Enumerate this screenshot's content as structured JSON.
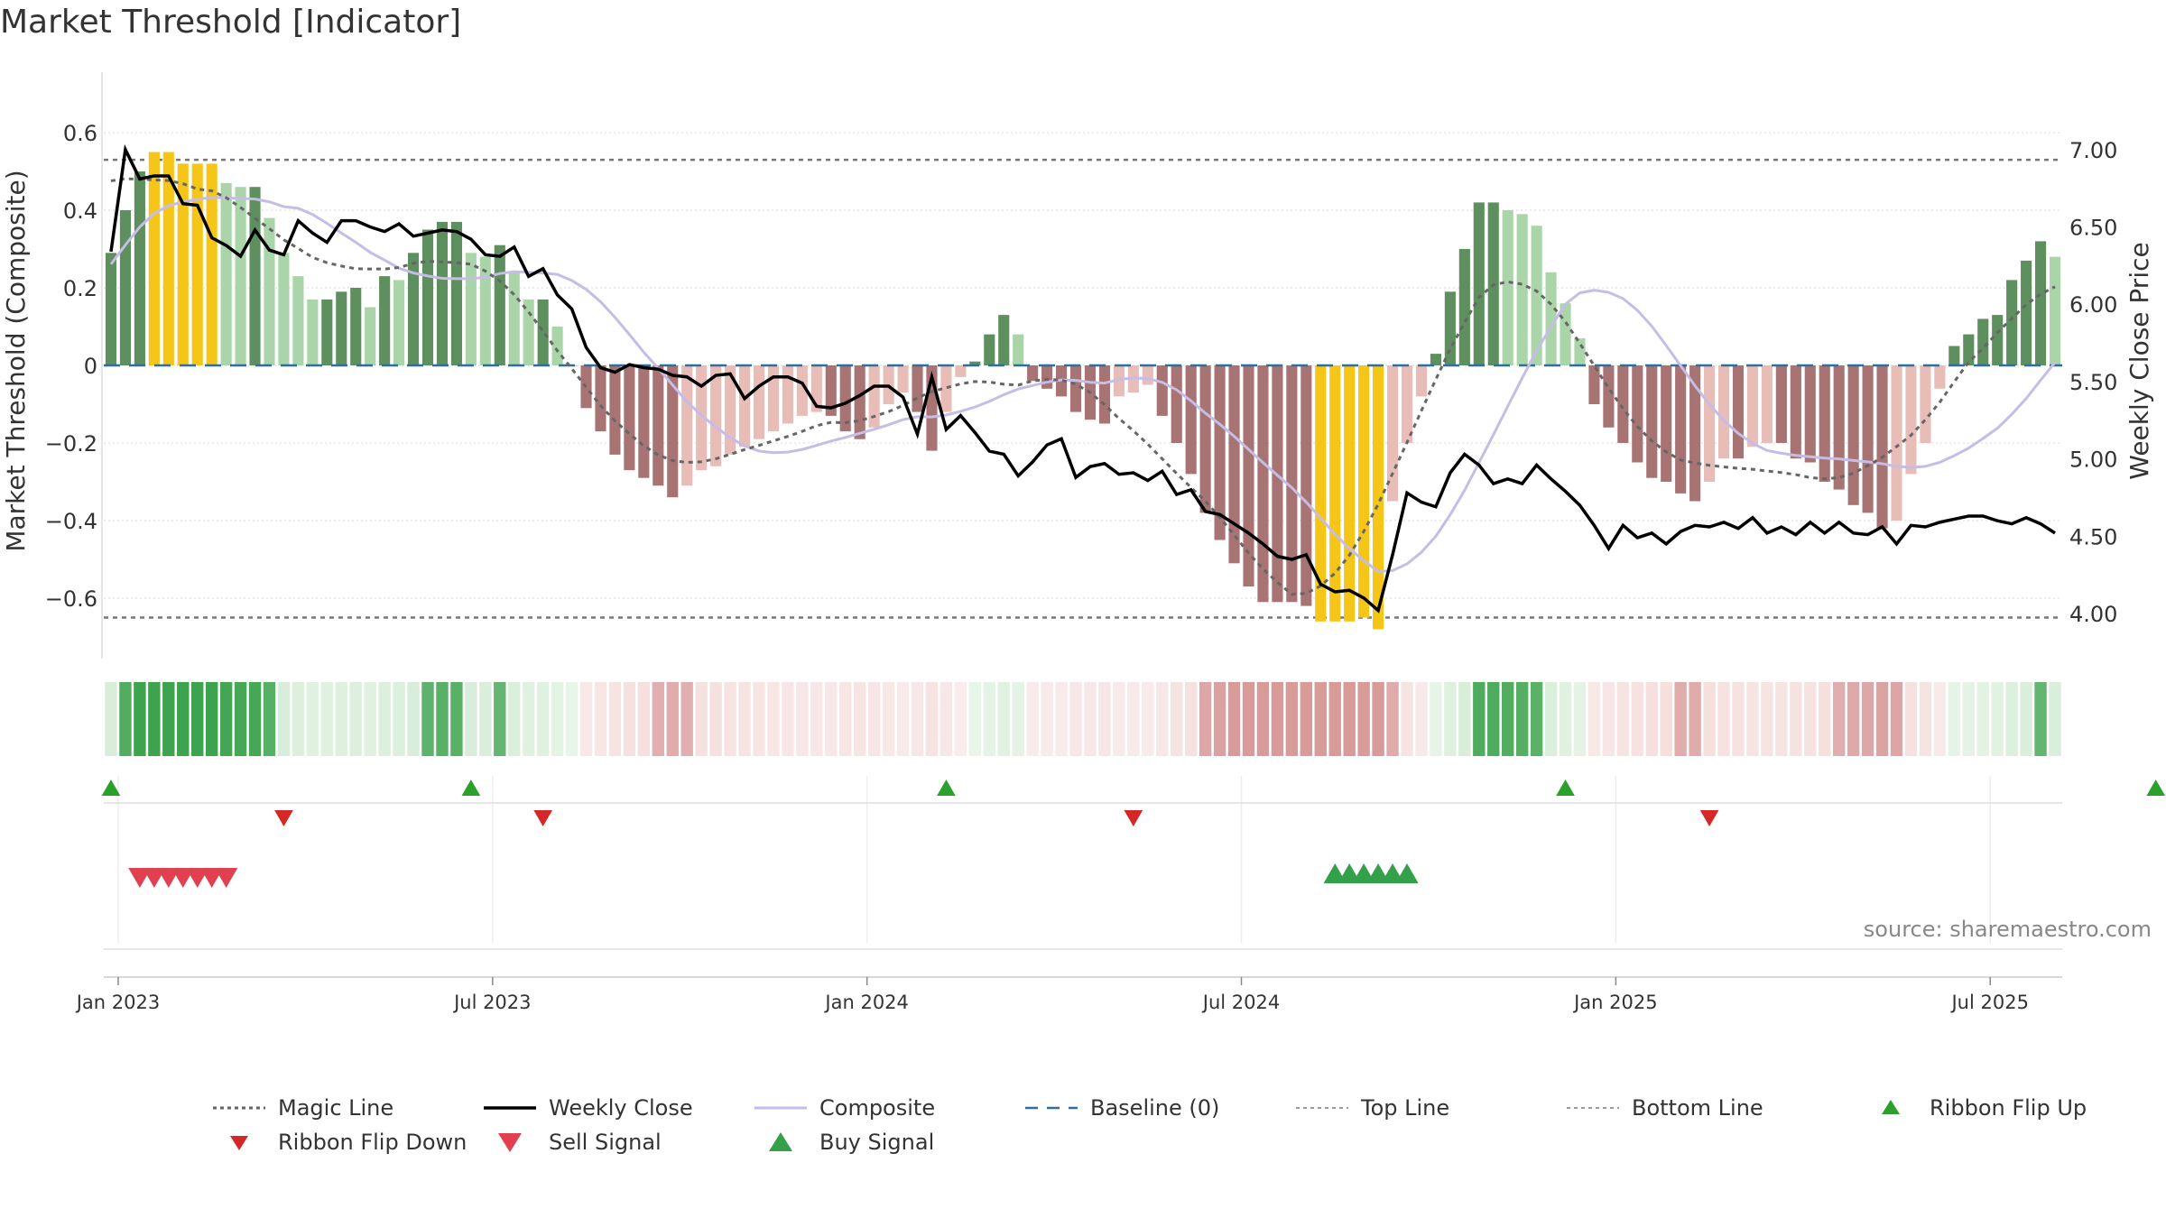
{
  "title": "Market Threshold [Indicator]",
  "source": "source: sharemaestro.com",
  "colors": {
    "bar_pos_strong": "#5e8f5e",
    "bar_pos_light": "#a9d5a9",
    "bar_neg_strong": "#a87373",
    "bar_neg_light": "#e8bdb8",
    "bar_extreme": "#f5c518",
    "weekly_close": "#000000",
    "magic_line": "#666666",
    "composite": "#c6bde6",
    "baseline": "#2f6fa0",
    "threshold_line": "#777777",
    "flip_up": "#2ca02c",
    "flip_down": "#d62728",
    "sell": "#e04050",
    "buy": "#35a04a",
    "ribbon_green_dark": "#3ea34e",
    "ribbon_green_light": "#cde9cf",
    "ribbon_red_dark": "#d99a9a",
    "ribbon_red_light": "#f2d7d5"
  },
  "chart_data": {
    "type": "bar",
    "title": "Market Threshold [Indicator]",
    "ylabel": "Market Threshold (Composite)",
    "y2label": "Weekly Close Price",
    "ylim": [
      -0.75,
      0.75
    ],
    "y2lim": [
      3.75,
      7.5
    ],
    "yticks": [
      -0.6,
      -0.4,
      -0.2,
      0,
      0.2,
      0.4,
      0.6
    ],
    "ytick_labels": [
      "−0.6",
      "−0.4",
      "−0.2",
      "0",
      "0.2",
      "0.4",
      "0.6"
    ],
    "y2ticks": [
      4.0,
      4.5,
      5.0,
      5.5,
      6.0,
      6.5,
      7.0
    ],
    "y2tick_labels": [
      "4.00",
      "4.50",
      "5.00",
      "5.50",
      "6.00",
      "6.50",
      "7.00"
    ],
    "xticks": [
      "Jan 2023",
      "Jul 2023",
      "Jan 2024",
      "Jul 2024",
      "Jan 2025",
      "Jul 2025"
    ],
    "top_line": 0.53,
    "bottom_line": -0.65,
    "grid": true,
    "composite": [
      0.29,
      0.4,
      0.5,
      0.55,
      0.55,
      0.52,
      0.52,
      0.52,
      0.47,
      0.46,
      0.46,
      0.38,
      0.29,
      0.23,
      0.17,
      0.17,
      0.19,
      0.2,
      0.15,
      0.23,
      0.22,
      0.29,
      0.35,
      0.37,
      0.37,
      0.29,
      0.28,
      0.31,
      0.24,
      0.17,
      0.17,
      0.1,
      0.0,
      -0.11,
      -0.17,
      -0.23,
      -0.27,
      -0.29,
      -0.31,
      -0.34,
      -0.31,
      -0.27,
      -0.26,
      -0.23,
      -0.21,
      -0.19,
      -0.17,
      -0.15,
      -0.13,
      -0.12,
      -0.13,
      -0.17,
      -0.19,
      -0.16,
      -0.1,
      -0.07,
      -0.12,
      -0.22,
      -0.12,
      -0.03,
      0.01,
      0.08,
      0.13,
      0.08,
      -0.04,
      -0.06,
      -0.08,
      -0.12,
      -0.14,
      -0.15,
      -0.08,
      -0.07,
      -0.05,
      -0.13,
      -0.2,
      -0.28,
      -0.38,
      -0.45,
      -0.51,
      -0.57,
      -0.61,
      -0.61,
      -0.61,
      -0.62,
      -0.66,
      -0.66,
      -0.66,
      -0.65,
      -0.68,
      -0.35,
      -0.2,
      -0.08,
      0.03,
      0.19,
      0.3,
      0.42,
      0.42,
      0.4,
      0.39,
      0.36,
      0.24,
      0.16,
      0.07,
      -0.1,
      -0.16,
      -0.2,
      -0.25,
      -0.29,
      -0.3,
      -0.33,
      -0.35,
      -0.3,
      -0.24,
      -0.24,
      -0.21,
      -0.2,
      -0.2,
      -0.24,
      -0.25,
      -0.3,
      -0.32,
      -0.36,
      -0.38,
      -0.42,
      -0.4,
      -0.28,
      -0.2,
      -0.06,
      0.05,
      0.08,
      0.12,
      0.13,
      0.22,
      0.27,
      0.32,
      0.28
    ],
    "weekly_close": [
      6.34,
      7.0,
      6.81,
      6.83,
      6.83,
      6.65,
      6.64,
      6.43,
      6.38,
      6.31,
      6.48,
      6.35,
      6.32,
      6.54,
      6.46,
      6.4,
      6.54,
      6.54,
      6.5,
      6.47,
      6.52,
      6.44,
      6.46,
      6.48,
      6.47,
      6.42,
      6.32,
      6.31,
      6.37,
      6.18,
      6.23,
      6.06,
      5.97,
      5.72,
      5.59,
      5.56,
      5.61,
      5.59,
      5.58,
      5.54,
      5.53,
      5.47,
      5.54,
      5.55,
      5.39,
      5.47,
      5.53,
      5.53,
      5.49,
      5.34,
      5.33,
      5.36,
      5.41,
      5.47,
      5.47,
      5.4,
      5.16,
      5.53,
      5.19,
      5.28,
      5.17,
      5.05,
      5.03,
      4.89,
      4.98,
      5.09,
      5.13,
      4.88,
      4.95,
      4.97,
      4.9,
      4.91,
      4.86,
      4.92,
      4.77,
      4.8,
      4.66,
      4.64,
      4.58,
      4.52,
      4.45,
      4.37,
      4.35,
      4.38,
      4.19,
      4.14,
      4.15,
      4.1,
      4.02,
      4.38,
      4.78,
      4.72,
      4.69,
      4.91,
      5.03,
      4.96,
      4.84,
      4.87,
      4.84,
      4.96,
      4.87,
      4.79,
      4.7,
      4.57,
      4.42,
      4.57,
      4.49,
      4.52,
      4.45,
      4.53,
      4.57,
      4.56,
      4.59,
      4.55,
      4.62,
      4.52,
      4.56,
      4.51,
      4.59,
      4.52,
      4.59,
      4.52,
      4.51,
      4.56,
      4.45,
      4.57,
      4.56,
      4.59,
      4.61,
      4.63,
      4.63,
      4.6,
      4.58,
      4.62,
      4.58,
      4.52
    ],
    "x_labels": [
      "Jan 2023",
      "Jul 2023",
      "Jan 2024",
      "Jul 2024",
      "Jan 2025",
      "Jul 2025"
    ],
    "series": [
      {
        "name": "Magic Line"
      },
      {
        "name": "Weekly Close"
      },
      {
        "name": "Composite"
      },
      {
        "name": "Baseline (0)"
      },
      {
        "name": "Top Line"
      },
      {
        "name": "Bottom Line"
      },
      {
        "name": "Ribbon Flip Up"
      },
      {
        "name": "Ribbon Flip Down"
      },
      {
        "name": "Sell Signal"
      },
      {
        "name": "Buy Signal"
      }
    ],
    "ribbon_flip_up_weeks": [
      0,
      25,
      58,
      101,
      142
    ],
    "ribbon_flip_down_weeks": [
      12,
      30,
      71,
      111
    ],
    "sell_signal_weeks": [
      2,
      3,
      4,
      5,
      6,
      7,
      8
    ],
    "buy_signal_weeks": [
      85,
      86,
      87,
      88,
      89,
      90
    ]
  },
  "legend": [
    {
      "label": "Magic Line",
      "icon": "dotted-line"
    },
    {
      "label": "Weekly Close",
      "icon": "solid-line"
    },
    {
      "label": "Composite",
      "icon": "solid-line-light"
    },
    {
      "label": "Baseline (0)",
      "icon": "dashed-line"
    },
    {
      "label": "Top Line",
      "icon": "dotted-line-light"
    },
    {
      "label": "Bottom Line",
      "icon": "dotted-line-light"
    },
    {
      "label": "Ribbon Flip Up",
      "icon": "triangle-up"
    },
    {
      "label": "Ribbon Flip Down",
      "icon": "triangle-down"
    },
    {
      "label": "Sell Signal",
      "icon": "triangle-down-large"
    },
    {
      "label": "Buy Signal",
      "icon": "triangle-up-large"
    }
  ]
}
